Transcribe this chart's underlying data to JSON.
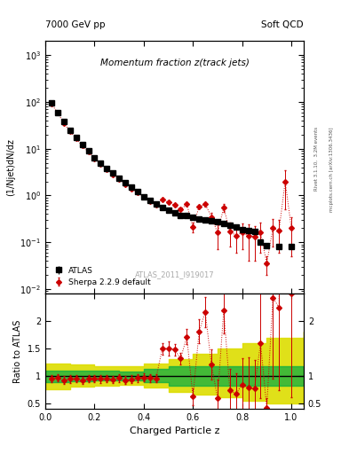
{
  "title_main": "Momentum fraction z(track jets)",
  "header_left": "7000 GeV pp",
  "header_right": "Soft QCD",
  "ylabel_main": "(1/Njet)dN/dz",
  "ylabel_ratio": "Ratio to ATLAS",
  "xlabel": "Charged Particle z",
  "watermark": "ATLAS_2011_I919017",
  "right_label": "mcplots.cern.ch [arXiv:1306.3436]",
  "rivet_label": "Rivet 3.1.10,  3.2M events",
  "ylim_main": [
    0.008,
    2000
  ],
  "ylim_ratio": [
    0.4,
    2.5
  ],
  "atlas_x": [
    0.025,
    0.05,
    0.075,
    0.1,
    0.125,
    0.15,
    0.175,
    0.2,
    0.225,
    0.25,
    0.275,
    0.3,
    0.325,
    0.35,
    0.375,
    0.4,
    0.425,
    0.45,
    0.475,
    0.5,
    0.525,
    0.55,
    0.575,
    0.6,
    0.625,
    0.65,
    0.675,
    0.7,
    0.725,
    0.75,
    0.775,
    0.8,
    0.825,
    0.85,
    0.875,
    0.9,
    0.95,
    1.0
  ],
  "atlas_y": [
    95.0,
    60.0,
    38.0,
    25.0,
    17.5,
    12.5,
    9.0,
    6.5,
    5.0,
    3.8,
    3.0,
    2.3,
    1.9,
    1.5,
    1.2,
    0.95,
    0.78,
    0.65,
    0.55,
    0.48,
    0.42,
    0.38,
    0.38,
    0.34,
    0.32,
    0.3,
    0.29,
    0.27,
    0.25,
    0.23,
    0.21,
    0.19,
    0.18,
    0.17,
    0.1,
    0.085,
    0.08,
    0.08
  ],
  "atlas_yerr": [
    5.0,
    3.0,
    2.0,
    1.3,
    0.9,
    0.6,
    0.5,
    0.3,
    0.25,
    0.2,
    0.15,
    0.12,
    0.1,
    0.08,
    0.07,
    0.05,
    0.04,
    0.04,
    0.03,
    0.03,
    0.02,
    0.02,
    0.02,
    0.02,
    0.02,
    0.02,
    0.015,
    0.015,
    0.015,
    0.012,
    0.012,
    0.01,
    0.01,
    0.01,
    0.01,
    0.008,
    0.008,
    0.008
  ],
  "sherpa_x": [
    0.025,
    0.05,
    0.075,
    0.1,
    0.125,
    0.15,
    0.175,
    0.2,
    0.225,
    0.25,
    0.275,
    0.3,
    0.325,
    0.35,
    0.375,
    0.4,
    0.425,
    0.45,
    0.475,
    0.5,
    0.525,
    0.55,
    0.575,
    0.6,
    0.625,
    0.65,
    0.675,
    0.7,
    0.725,
    0.75,
    0.775,
    0.8,
    0.825,
    0.85,
    0.875,
    0.9,
    0.925,
    0.95,
    0.975,
    1.0
  ],
  "sherpa_y": [
    90.0,
    58.0,
    35.0,
    23.5,
    16.5,
    11.5,
    8.5,
    6.2,
    4.7,
    3.6,
    2.8,
    2.2,
    1.75,
    1.4,
    1.15,
    0.92,
    0.75,
    0.62,
    0.82,
    0.72,
    0.62,
    0.5,
    0.65,
    0.21,
    0.58,
    0.65,
    0.35,
    0.16,
    0.55,
    0.17,
    0.14,
    0.16,
    0.14,
    0.13,
    0.16,
    0.035,
    0.2,
    0.18,
    2.0,
    0.2
  ],
  "sherpa_yerr": [
    4.0,
    2.5,
    1.8,
    1.2,
    0.8,
    0.6,
    0.4,
    0.3,
    0.25,
    0.18,
    0.14,
    0.12,
    0.09,
    0.08,
    0.06,
    0.05,
    0.04,
    0.03,
    0.04,
    0.04,
    0.03,
    0.03,
    0.04,
    0.05,
    0.06,
    0.07,
    0.08,
    0.09,
    0.1,
    0.09,
    0.08,
    0.09,
    0.1,
    0.09,
    0.1,
    0.015,
    0.12,
    0.12,
    1.5,
    0.15
  ],
  "green_band_x": [
    0.0,
    0.1,
    0.2,
    0.3,
    0.4,
    0.5,
    0.6,
    0.7,
    0.8,
    0.9,
    1.05
  ],
  "green_band_lo": [
    0.88,
    0.9,
    0.91,
    0.92,
    0.88,
    0.82,
    0.82,
    0.82,
    0.82,
    0.82,
    0.82
  ],
  "green_band_hi": [
    1.1,
    1.1,
    1.09,
    1.08,
    1.12,
    1.18,
    1.18,
    1.18,
    1.18,
    1.18,
    1.18
  ],
  "yellow_band_x": [
    0.0,
    0.1,
    0.2,
    0.3,
    0.4,
    0.5,
    0.6,
    0.7,
    0.8,
    0.9,
    1.05
  ],
  "yellow_band_lo": [
    0.75,
    0.8,
    0.82,
    0.83,
    0.78,
    0.7,
    0.65,
    0.6,
    0.55,
    0.5,
    0.45
  ],
  "yellow_band_hi": [
    1.22,
    1.2,
    1.18,
    1.17,
    1.22,
    1.3,
    1.4,
    1.5,
    1.6,
    1.7,
    1.8
  ],
  "atlas_color": "#000000",
  "sherpa_color": "#cc0000",
  "green_color": "#00aa44",
  "yellow_color": "#dddd00",
  "background_color": "#ffffff"
}
